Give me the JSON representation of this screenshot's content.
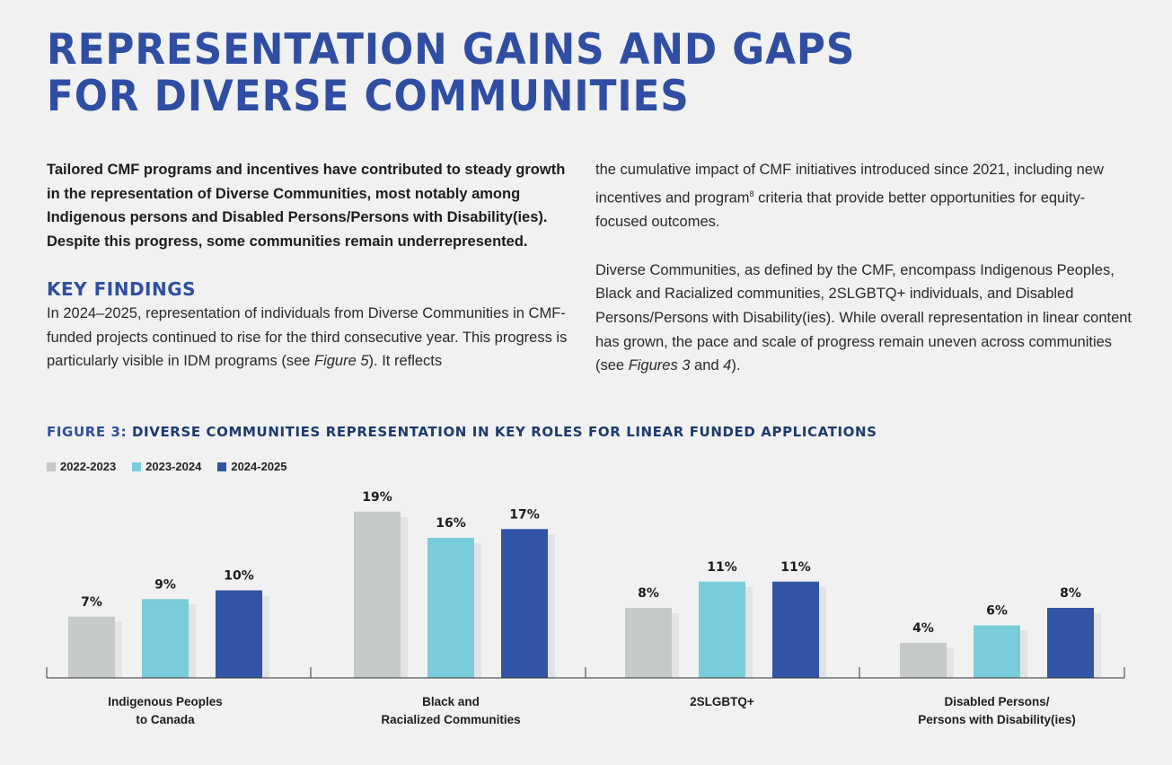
{
  "title": {
    "line1": "REPRESENTATION GAINS AND GAPS",
    "line2": "FOR DIVERSE COMMUNITIES"
  },
  "intro": "Tailored CMF programs and incentives have contributed to steady growth in the representation of Diverse Communities, most notably among Indigenous persons and Disabled Persons/Persons with Disability(ies). Despite this progress, some communities remain underrepresented.",
  "key_findings": {
    "heading": "KEY FINDINGS",
    "para_start": "In 2024–2025, representation of individuals from Diverse Communities in CMF-funded projects continued to rise for the third consecutive year. This progress is particularly visible in IDM programs (see ",
    "para_fig": "Figure 5",
    "para_end": "). It reflects"
  },
  "right_column": {
    "para1_start": "the cumulative impact of CMF initiatives introduced since 2021, including new incentives and program",
    "para1_footnote": "8",
    "para1_end": " criteria that provide better opportunities for equity-focused outcomes.",
    "para2_start": "Diverse Communities, as defined by the CMF, encompass Indigenous Peoples, Black and Racialized communities, 2SLGBTQ+ individuals, and Disabled Persons/Persons with Disability(ies). While overall representation in linear content has grown, the pace and scale of progress remain uneven across communities (see ",
    "para2_fig1": "Figures 3",
    "para2_and": " and ",
    "para2_fig2": "4",
    "para2_end": ")."
  },
  "figure": {
    "label": "FIGURE 3:",
    "text": " DIVERSE COMMUNITIES REPRESENTATION IN KEY ROLES FOR LINEAR FUNDED APPLICATIONS"
  },
  "chart_data": {
    "type": "bar",
    "categories": [
      [
        "Indigenous Peoples",
        "to Canada"
      ],
      [
        "Black and",
        "Racialized Communities"
      ],
      [
        "2SLGBTQ+"
      ],
      [
        "Disabled Persons/",
        "Persons with Disability(ies)"
      ]
    ],
    "series": [
      {
        "name": "2022-2023",
        "color": "#c5c9c8",
        "values": [
          7,
          19,
          8,
          4
        ],
        "labels": [
          "7%",
          "19%",
          "8%",
          "4%"
        ]
      },
      {
        "name": "2023-2024",
        "color": "#79ccd9",
        "values": [
          9,
          16,
          11,
          6
        ],
        "labels": [
          "9%",
          "16%",
          "11%",
          "6%"
        ]
      },
      {
        "name": "2024-2025",
        "color": "#3154a4",
        "values": [
          10,
          17,
          11,
          8
        ],
        "labels": [
          "10%",
          "17%",
          "11%",
          "8%"
        ]
      }
    ],
    "unit": "%",
    "ylim": [
      0,
      20
    ],
    "legend_position": "top-left",
    "grid": false
  }
}
